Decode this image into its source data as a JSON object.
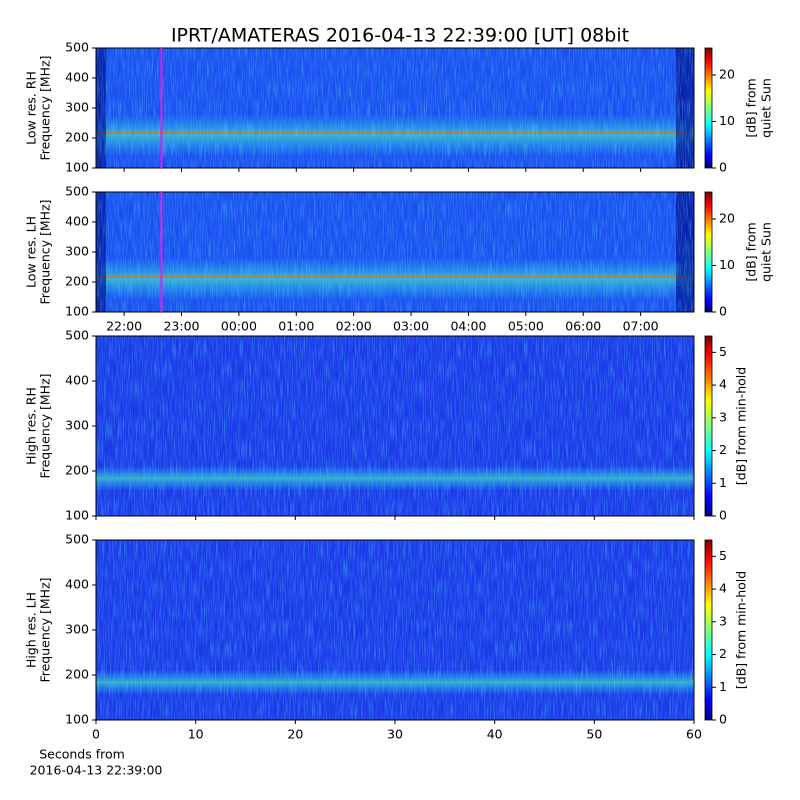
{
  "title": "IPRT/AMATERAS 2016-04-13 22:39:00 [UT]   08bit",
  "chart_data": [
    {
      "type": "heatmap",
      "ylabel": [
        "Low res. RH",
        "Frequency [MHz]"
      ],
      "ylim": [
        100,
        500
      ],
      "yticks": [
        100,
        200,
        300,
        400,
        500
      ],
      "xlim": [
        21.51,
        31.93
      ],
      "xticks": [
        22,
        23,
        24,
        25,
        26,
        27,
        28,
        29,
        30,
        31
      ],
      "vline": 22.65,
      "vline_color": "#e020e0",
      "colorbar": {
        "label": [
          "[dB] from",
          "quiet Sun"
        ],
        "lim": [
          0,
          25.8
        ],
        "ticks": [
          0,
          10,
          20
        ]
      }
    },
    {
      "type": "heatmap",
      "ylabel": [
        "Low res. LH",
        "Frequency [MHz]"
      ],
      "ylim": [
        100,
        500
      ],
      "yticks": [
        100,
        200,
        300,
        400,
        500
      ],
      "xlim": [
        21.51,
        31.93
      ],
      "xticks": [
        {
          "value": 22,
          "label": "22:00"
        },
        {
          "value": 23,
          "label": "23:00"
        },
        {
          "value": 24,
          "label": "00:00"
        },
        {
          "value": 25,
          "label": "01:00"
        },
        {
          "value": 26,
          "label": "02:00"
        },
        {
          "value": 27,
          "label": "03:00"
        },
        {
          "value": 28,
          "label": "04:00"
        },
        {
          "value": 29,
          "label": "05:00"
        },
        {
          "value": 30,
          "label": "06:00"
        },
        {
          "value": 31,
          "label": "07:00"
        }
      ],
      "vline": 22.65,
      "vline_color": "#e020e0",
      "colorbar": {
        "label": [
          "[dB] from",
          "quiet Sun"
        ],
        "lim": [
          0,
          25.8
        ],
        "ticks": [
          0,
          10,
          20
        ]
      }
    },
    {
      "type": "heatmap",
      "ylabel": [
        "High res. RH",
        "Frequency [MHz]"
      ],
      "ylim": [
        100,
        500
      ],
      "yticks": [
        100,
        200,
        300,
        400,
        500
      ],
      "xlim": [
        0,
        60
      ],
      "xticks": [
        0,
        10,
        20,
        30,
        40,
        50,
        60
      ],
      "colorbar": {
        "label": [
          "[dB] from min-hold"
        ],
        "lim": [
          0,
          5.5
        ],
        "ticks": [
          0,
          1,
          2,
          3,
          4,
          5
        ]
      }
    },
    {
      "type": "heatmap",
      "ylabel": [
        "High res. LH",
        "Frequency [MHz]"
      ],
      "ylim": [
        100,
        500
      ],
      "yticks": [
        100,
        200,
        300,
        400,
        500
      ],
      "xlim": [
        0,
        60
      ],
      "xticks": [
        0,
        10,
        20,
        30,
        40,
        50,
        60
      ],
      "xlabel": [
        "Seconds from",
        "2016-04-13 22:39:00"
      ],
      "colorbar": {
        "label": [
          "[dB] from min-hold"
        ],
        "lim": [
          0,
          5.5
        ],
        "ticks": [
          0,
          1,
          2,
          3,
          4,
          5
        ]
      }
    }
  ]
}
